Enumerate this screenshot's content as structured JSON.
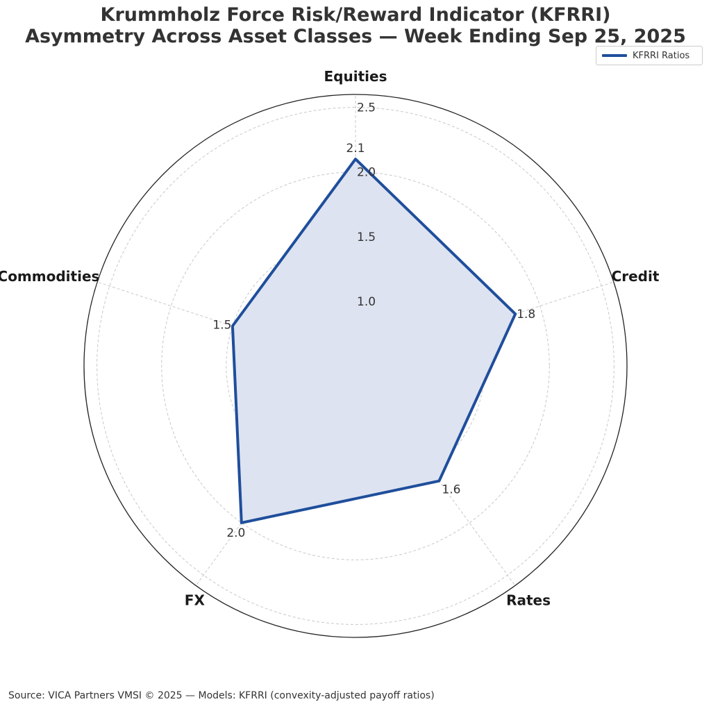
{
  "chart_data": {
    "type": "radar",
    "title": [
      "Krummholz Force Risk/Reward Indicator (KFRRI)",
      "Asymmetry Across Asset Classes — Week Ending Sep 25, 2025"
    ],
    "categories": [
      "Equities",
      "Credit",
      "Rates",
      "FX",
      "Commodities"
    ],
    "series": [
      {
        "name": "KFRRI Ratios",
        "values": [
          2.1,
          1.8,
          1.6,
          2.0,
          1.5
        ],
        "value_labels": [
          "2.1",
          "1.8",
          "1.6",
          "2.0",
          "1.5"
        ],
        "color": "#1f4e9c",
        "fill": "#dde3f0"
      }
    ],
    "rlim": [
      0.5,
      2.6
    ],
    "rticks": [
      1.0,
      1.5,
      2.0,
      2.5
    ],
    "rtick_labels": [
      "1.0",
      "1.5",
      "2.0",
      "2.5"
    ],
    "grid": true,
    "legend_position": "top-right"
  },
  "footer": {
    "source": "Source: VICA Partners VMSI © 2025 — Models: KFRRI (convexity-adjusted payoff ratios)"
  }
}
